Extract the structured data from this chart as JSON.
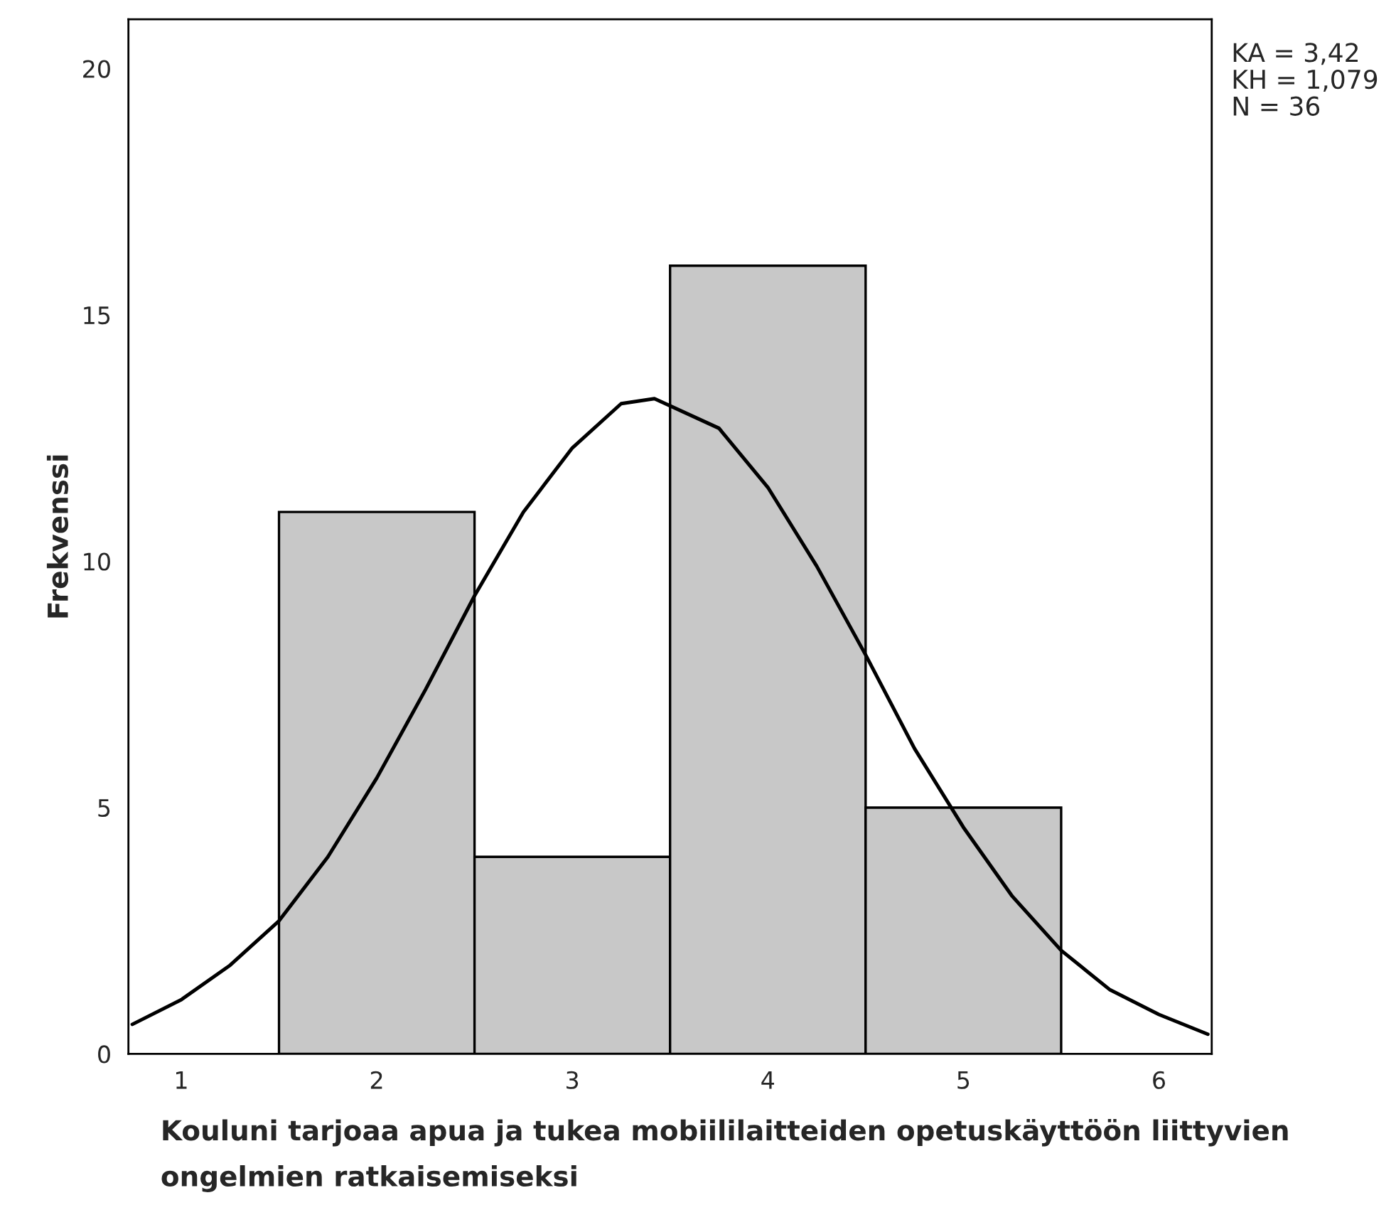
{
  "chart_data": {
    "type": "histogram",
    "xlabel": "Kouluni tarjoaa apua ja tukea mobiililaitteiden opetuskäyttöön liittyvien ongelmien ratkaisemiseksi",
    "ylabel": "Frekvenssi",
    "annotations": [
      "KA = 3,42",
      "KH = 1,079",
      "N = 36"
    ],
    "bins": [
      1.5,
      2.5,
      3.5,
      4.5,
      5.5
    ],
    "values": [
      11,
      4,
      16,
      5
    ],
    "color": "#c8c8c8",
    "series": [
      {
        "type": "line",
        "color": "#000000",
        "x": [
          0.75,
          1.0,
          1.25,
          1.5,
          1.75,
          2.0,
          2.25,
          2.5,
          2.75,
          3.0,
          3.25,
          3.42,
          3.75,
          4.0,
          4.25,
          4.5,
          4.75,
          5.0,
          5.25,
          5.5,
          5.75,
          6.0,
          6.25
        ],
        "values": [
          0.6,
          1.1,
          1.8,
          2.7,
          4.0,
          5.6,
          7.4,
          9.3,
          11.0,
          12.3,
          13.2,
          13.3,
          12.7,
          11.5,
          9.9,
          8.1,
          6.2,
          4.6,
          3.2,
          2.1,
          1.3,
          0.8,
          0.4
        ]
      }
    ],
    "xlim": [
      0.73,
      6.27
    ],
    "ylim": [
      0,
      21
    ],
    "xticks": [
      1,
      2,
      3,
      4,
      5,
      6
    ],
    "yticks": [
      0,
      5,
      10,
      15,
      20
    ],
    "grid": false,
    "legend": false
  }
}
